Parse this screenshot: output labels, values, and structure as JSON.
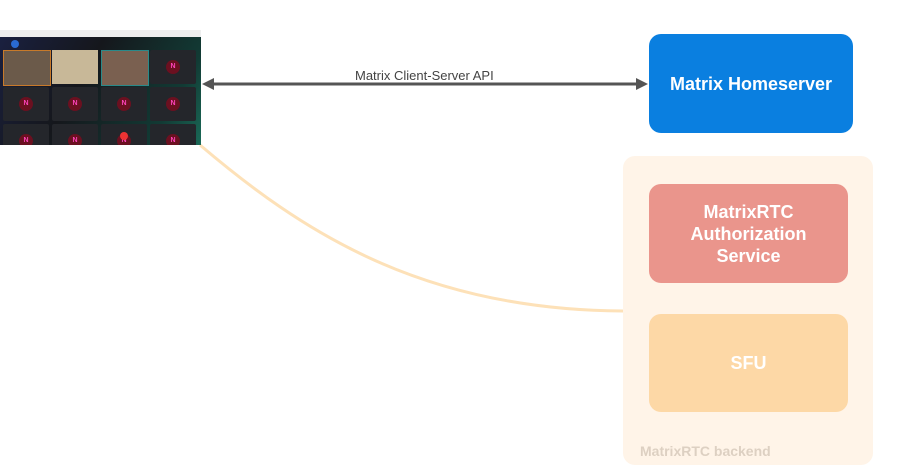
{
  "screenshot": {
    "description_icon": "video-call-screenshot",
    "avatar_letter": "N"
  },
  "arrow": {
    "label": "Matrix Client-Server API",
    "color": "#555555"
  },
  "homeserver": {
    "label": "Matrix Homeserver",
    "color": "#0a7fe0"
  },
  "backend": {
    "label": "MatrixRTC backend",
    "color": "#fff4e8",
    "auth": {
      "label": "MatrixRTC Authorization Service",
      "color": "#ea958c"
    },
    "sfu": {
      "label": "SFU",
      "color": "#fdd8a6"
    }
  },
  "connector": {
    "color": "#fde1b8"
  }
}
